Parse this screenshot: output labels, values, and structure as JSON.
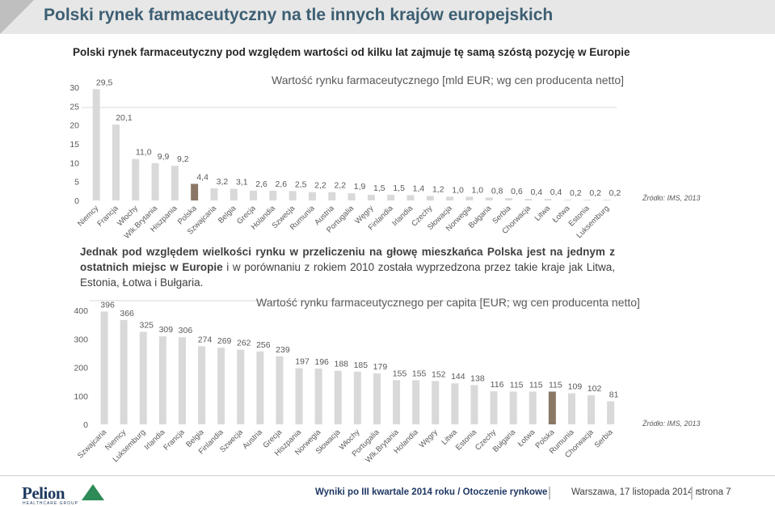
{
  "page": {
    "title": "Polski rynek farmaceutyczny na tle innych krajów europejskich",
    "subtitle": "Polski rynek farmaceutyczny pod względem wartości od kilku lat zajmuje tę samą szóstą pozycję w Europie",
    "paragraph_bold_1": "Jednak pod względem wielkości rynku w przeliczeniu na głowę mieszkańca Polska jest na jednym z ostatnich miejsc w Europie",
    "paragraph_rest": " i w porównaniu z rokiem 2010 została wyprzedzona przez takie kraje jak Litwa, Estonia, Łotwa i Bułgaria."
  },
  "footer": {
    "logo_text": "Pelion",
    "logo_sub": "HEALTHCARE GROUP",
    "report": "Wyniki po III kwartale 2014 roku / Otoczenie rynkowe",
    "date": "Warszawa, 17 listopada 2014 r.",
    "page": "strona 7"
  },
  "colors": {
    "bar": "#d9d9d9",
    "highlight": "#8b7765",
    "title": "#3d5f73",
    "header_band": "#e7e7e7"
  },
  "chart_data": [
    {
      "type": "bar",
      "title": "Wartość rynku farmaceutycznego [mld EUR; wg cen producenta netto]",
      "source": "Źródło: IMS, 2013",
      "ylim": [
        0,
        30
      ],
      "yticks": [
        "0",
        "5",
        "10",
        "15",
        "20",
        "25",
        "30"
      ],
      "highlight": "Polska",
      "categories": [
        "Niemcy",
        "Francja",
        "Włochy",
        "Wlk.Brytania",
        "Hiszpania",
        "Polska",
        "Szwajcaria",
        "Belgia",
        "Grecja",
        "Holandia",
        "Szwecja",
        "Rumunia",
        "Austria",
        "Portugalia",
        "Węgry",
        "Finlandia",
        "Irlandia",
        "Czechy",
        "Słowacja",
        "Norwegia",
        "Bułgaria",
        "Serbia",
        "Chorwacja",
        "Litwa",
        "Łotwa",
        "Estonia",
        "Luksemburg"
      ],
      "values": [
        29.5,
        20.1,
        11.0,
        9.9,
        9.2,
        4.4,
        3.2,
        3.1,
        2.6,
        2.6,
        2.5,
        2.2,
        2.2,
        1.9,
        1.5,
        1.5,
        1.4,
        1.2,
        1.0,
        1.0,
        0.8,
        0.6,
        0.4,
        0.4,
        0.2,
        0.2,
        0.2
      ],
      "labels": [
        "29,5",
        "20,1",
        "11,0",
        "9,9",
        "9,2",
        "4,4",
        "3,2",
        "3,1",
        "2,6",
        "2,6",
        "2,5",
        "2,2",
        "2,2",
        "1,9",
        "1,5",
        "1,5",
        "1,4",
        "1,2",
        "1,0",
        "1,0",
        "0,8",
        "0,6",
        "0,4",
        "0,4",
        "0,2",
        "0,2",
        "0,2"
      ]
    },
    {
      "type": "bar",
      "title": "Wartość rynku farmaceutycznego per capita [EUR; wg cen producenta netto]",
      "source": "Źródło: IMS, 2013",
      "ylim": [
        0,
        400
      ],
      "yticks": [
        "0",
        "100",
        "200",
        "300",
        "400"
      ],
      "highlight": "Polska",
      "categories": [
        "Szwajcaria",
        "Niemcy",
        "Luksemburg",
        "Irlandia",
        "Francja",
        "Belgia",
        "Finlandia",
        "Szwecja",
        "Austria",
        "Grecja",
        "Hiszpania",
        "Norwegia",
        "Słowacja",
        "Włochy",
        "Portugalia",
        "Wlk.Brytania",
        "Holandia",
        "Węgry",
        "Litwa",
        "Estonia",
        "Czechy",
        "Bułgaria",
        "Łotwa",
        "Polska",
        "Rumunia",
        "Chorwacja",
        "Serbia"
      ],
      "values": [
        396,
        366,
        325,
        309,
        306,
        274,
        269,
        262,
        256,
        239,
        197,
        196,
        188,
        185,
        179,
        155,
        155,
        152,
        144,
        138,
        116,
        115,
        115,
        115,
        109,
        102,
        81
      ],
      "labels": [
        "396",
        "366",
        "325",
        "309",
        "306",
        "274",
        "269",
        "262",
        "256",
        "239",
        "197",
        "196",
        "188",
        "185",
        "179",
        "155",
        "155",
        "152",
        "144",
        "138",
        "116",
        "115",
        "115",
        "115",
        "109",
        "102",
        "81"
      ]
    }
  ]
}
